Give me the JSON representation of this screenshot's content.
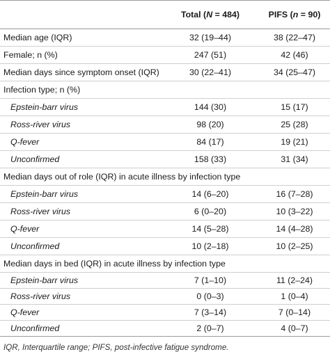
{
  "header": {
    "col1": "",
    "total_prefix": "Total (",
    "total_var": "N",
    "total_suffix": " = 484)",
    "pifs_prefix": "PIFS (",
    "pifs_var": "n",
    "pifs_suffix": " = 90)"
  },
  "rows": [
    {
      "label": "Median age (IQR)",
      "total": "32 (19–44)",
      "pifs": "38 (22–47)"
    },
    {
      "label": "Female; n (%)",
      "total": "247 (51)",
      "pifs": "42 (46)"
    },
    {
      "label": "Median days since symptom onset (IQR)",
      "total": "30 (22–41)",
      "pifs": "34 (25–47)"
    },
    {
      "label": "Infection type; n (%)",
      "total": "",
      "pifs": ""
    },
    {
      "label": "Epstein-barr virus",
      "total": "144 (30)",
      "pifs": "15 (17)"
    },
    {
      "label": "Ross-river virus",
      "total": "98 (20)",
      "pifs": "25 (28)"
    },
    {
      "label": "Q-fever",
      "total": "84 (17)",
      "pifs": "19 (21)"
    },
    {
      "label": "Unconfirmed",
      "total": "158 (33)",
      "pifs": "31 (34)"
    },
    {
      "label": "Median days out of role (IQR) in acute illness by infection type",
      "total": "",
      "pifs": ""
    },
    {
      "label": "Epstein-barr virus",
      "total": "14 (6–20)",
      "pifs": "16 (7–28)"
    },
    {
      "label": "Ross-river virus",
      "total": "6 (0–20)",
      "pifs": "10 (3–22)"
    },
    {
      "label": "Q-fever",
      "total": "14 (5–28)",
      "pifs": "14 (4–28)"
    },
    {
      "label": "Unconfirmed",
      "total": "10 (2–18)",
      "pifs": "10 (2–25)"
    },
    {
      "label": "Median days in bed (IQR) in acute illness by infection type",
      "total": "",
      "pifs": ""
    },
    {
      "label": "Epstein-barr virus",
      "total": "7 (1–10)",
      "pifs": "11 (2–24)"
    },
    {
      "label": "Ross-river virus",
      "total": "0 (0–3)",
      "pifs": "1 (0–4)"
    },
    {
      "label": "Q-fever",
      "total": "7 (3–14)",
      "pifs": "7 (0–14)"
    },
    {
      "label": "Unconfirmed",
      "total": "2 (0–7)",
      "pifs": "4 (0–7)"
    }
  ],
  "footnote": "IQR, Interquartile range; PIFS, post-infective fatigue syndrome."
}
